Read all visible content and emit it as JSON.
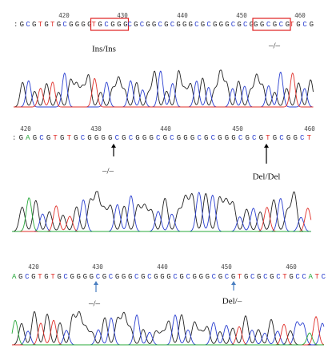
{
  "panels": [
    {
      "positions": [
        "420",
        "430",
        "440",
        "450",
        "460"
      ],
      "segments": [
        {
          "text": ":GCGTGTGCGGGG"
        },
        {
          "text": "TGCGGG",
          "boxed": true
        },
        {
          "text": "CGCGGCGCGGGCGCGGGCGCG"
        },
        {
          "text": "GGCGCG",
          "boxed": true
        },
        {
          "text": "TGCG"
        }
      ],
      "annotations": [
        {
          "label": "Ins/Ins"
        },
        {
          "label": "–/–"
        }
      ]
    },
    {
      "positions": [
        "420",
        "430",
        "440",
        "450",
        "460"
      ],
      "segments": [
        {
          "text": ":GAGCGTGTGCGGGGCGCGGGCGCGGGCGCGGGCGCGTGCGGCT"
        }
      ],
      "annotations": [
        {
          "label": "–/–",
          "arrow_color": "#000000"
        },
        {
          "label": "Del/Del",
          "arrow_color": "#000000"
        }
      ]
    },
    {
      "positions": [
        "420",
        "430",
        "440",
        "450",
        "460"
      ],
      "segments": [
        {
          "text": "AGCGTGTGCGGGGCGCGGGCGCGGGCGCGGGCGCGTGCGCGCTGCCATC"
        }
      ],
      "annotations": [
        {
          "label": "–/–",
          "arrow_color": "#4a7fc1"
        },
        {
          "label": "Del/–",
          "arrow_color": "#4a7fc1"
        }
      ]
    }
  ]
}
